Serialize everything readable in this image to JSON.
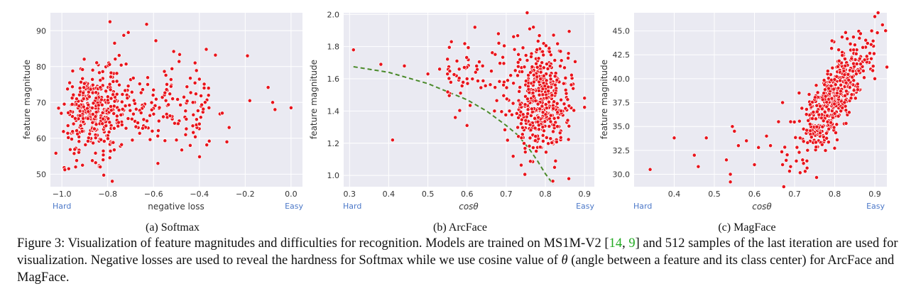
{
  "chart_data": [
    {
      "type": "scatter",
      "subcaption": "(a) Softmax",
      "xlabel": "negative loss",
      "ylabel": "feature magnitude",
      "xlim": [
        -1.05,
        0.05
      ],
      "ylim": [
        46.5,
        95
      ],
      "xticks": [
        "−1.0",
        "−0.8",
        "−0.6",
        "−0.4",
        "−0.2",
        "0.0"
      ],
      "xtick_values": [
        -1.0,
        -0.8,
        -0.6,
        -0.4,
        -0.2,
        0.0
      ],
      "yticks": [
        "50",
        "60",
        "70",
        "80",
        "90"
      ],
      "ytick_values": [
        50,
        60,
        70,
        80,
        90
      ],
      "left_note": "Hard",
      "right_note": "Easy",
      "point_color": "#e8141c",
      "n_points": 512,
      "cloud": {
        "x_center": -0.87,
        "x_spread": 0.06,
        "y_center": 67,
        "y_spread": 5.5,
        "share": 0.62
      },
      "tail": {
        "x_range": [
          -0.8,
          -0.35
        ],
        "y_center": 69,
        "y_spread": 7,
        "share": 0.33
      },
      "points": [
        [
          -0.79,
          92.5
        ],
        [
          -0.63,
          91.8
        ],
        [
          -0.71,
          89.5
        ],
        [
          -0.73,
          88.7
        ],
        [
          -0.77,
          86.5
        ],
        [
          -0.59,
          87.2
        ],
        [
          -0.37,
          84.8
        ],
        [
          -0.33,
          83.2
        ],
        [
          -0.19,
          83.0
        ],
        [
          -0.1,
          74.2
        ],
        [
          -0.08,
          70.0
        ],
        [
          -0.07,
          68.0
        ],
        [
          -0.0,
          68.5
        ],
        [
          -0.18,
          70.5
        ],
        [
          -0.27,
          63.0
        ],
        [
          -0.28,
          59.0
        ],
        [
          -0.4,
          64.0
        ],
        [
          -0.5,
          59.5
        ],
        [
          -0.46,
          61.0
        ],
        [
          -0.44,
          58.0
        ],
        [
          -0.78,
          48.0
        ],
        [
          -0.97,
          51.5
        ],
        [
          -0.94,
          52.0
        ],
        [
          -0.91,
          52.5
        ],
        [
          -0.82,
          54.0
        ],
        [
          -0.31,
          66.8
        ],
        [
          -0.3,
          67.0
        ],
        [
          -0.36,
          72.0
        ],
        [
          -0.4,
          76.5
        ],
        [
          -0.36,
          74.0
        ]
      ]
    },
    {
      "type": "scatter",
      "subcaption": "(b) ArcFace",
      "xlabel": "cosθ",
      "ylabel": "feature magnitude",
      "xlim": [
        0.285,
        0.925
      ],
      "ylim": [
        0.93,
        2.01
      ],
      "xticks": [
        "0.3",
        "0.4",
        "0.5",
        "0.6",
        "0.7",
        "0.8",
        "0.9"
      ],
      "xtick_values": [
        0.3,
        0.4,
        0.5,
        0.6,
        0.7,
        0.8,
        0.9
      ],
      "yticks": [
        "1.0",
        "1.2",
        "1.4",
        "1.6",
        "1.8",
        "2.0"
      ],
      "ytick_values": [
        1.0,
        1.2,
        1.4,
        1.6,
        1.8,
        2.0
      ],
      "left_note": "Hard",
      "right_note": "Easy",
      "point_color": "#e8141c",
      "curve_color": "#4a8a2a",
      "boundary_curve": [
        [
          0.31,
          1.675
        ],
        [
          0.4,
          1.64
        ],
        [
          0.5,
          1.57
        ],
        [
          0.6,
          1.47
        ],
        [
          0.65,
          1.4
        ],
        [
          0.7,
          1.31
        ],
        [
          0.73,
          1.25
        ],
        [
          0.76,
          1.16
        ],
        [
          0.78,
          1.09
        ],
        [
          0.8,
          1.01
        ],
        [
          0.82,
          0.945
        ]
      ],
      "n_points": 512,
      "cloud": {
        "x_center": 0.79,
        "x_spread": 0.035,
        "y_center": 1.48,
        "y_spread": 0.17,
        "share": 0.88
      },
      "tail": {
        "x_range": [
          0.55,
          0.74
        ],
        "y_center": 1.62,
        "y_spread": 0.12,
        "share": 0.07
      },
      "points": [
        [
          0.31,
          1.78
        ],
        [
          0.38,
          1.69
        ],
        [
          0.41,
          1.22
        ],
        [
          0.44,
          1.68
        ],
        [
          0.5,
          1.63
        ],
        [
          0.56,
          1.83
        ],
        [
          0.6,
          1.31
        ],
        [
          0.57,
          1.36
        ],
        [
          0.62,
          1.92
        ],
        [
          0.86,
          0.98
        ],
        [
          0.9,
          1.48
        ],
        [
          0.68,
          1.88
        ],
        [
          0.76,
          1.91
        ],
        [
          0.67,
          1.4
        ],
        [
          0.6,
          1.6
        ],
        [
          0.58,
          1.66
        ],
        [
          0.53,
          1.66
        ],
        [
          0.55,
          1.63
        ]
      ]
    },
    {
      "type": "scatter",
      "subcaption": "(c) MagFace",
      "xlabel": "cosθ",
      "ylabel": "feature magnitude",
      "xlim": [
        0.3,
        0.93
      ],
      "ylim": [
        28.7,
        46.9
      ],
      "xticks": [
        "0.4",
        "0.5",
        "0.6",
        "0.7",
        "0.8",
        "0.9"
      ],
      "xtick_values": [
        0.4,
        0.5,
        0.6,
        0.7,
        0.8,
        0.9
      ],
      "yticks": [
        "30.0",
        "32.5",
        "35.0",
        "37.5",
        "40.0",
        "42.5",
        "45.0"
      ],
      "ytick_values": [
        30.0,
        32.5,
        35.0,
        37.5,
        40.0,
        42.5,
        45.0
      ],
      "left_note": "Hard",
      "right_note": "Easy",
      "point_color": "#e8141c",
      "n_points": 512,
      "trend": {
        "x_center": 0.8,
        "x_spread": 0.045,
        "base_y": 38.0,
        "slope": 55,
        "y_spread": 2.0,
        "share": 0.9
      },
      "points": [
        [
          0.34,
          30.5
        ],
        [
          0.4,
          33.8
        ],
        [
          0.45,
          32.0
        ],
        [
          0.46,
          30.8
        ],
        [
          0.48,
          33.8
        ],
        [
          0.53,
          31.5
        ],
        [
          0.54,
          30.0
        ],
        [
          0.54,
          29.2
        ],
        [
          0.545,
          35.0
        ],
        [
          0.55,
          34.5
        ],
        [
          0.56,
          33.0
        ],
        [
          0.58,
          33.5
        ],
        [
          0.6,
          31.0
        ],
        [
          0.61,
          32.8
        ],
        [
          0.63,
          34.0
        ],
        [
          0.64,
          33.0
        ],
        [
          0.66,
          35.5
        ],
        [
          0.67,
          37.5
        ],
        [
          0.67,
          31.0
        ],
        [
          0.69,
          35.5
        ],
        [
          0.9,
          46.5
        ],
        [
          0.9,
          40.0
        ],
        [
          0.69,
          30.8
        ],
        [
          0.72,
          31.5
        ]
      ]
    }
  ],
  "caption": {
    "prefix": "Figure 3: Visualization of feature magnitudes and difficulties for recognition. Models are trained on MS1M-V2 [",
    "ref1": "14",
    "sep": ", ",
    "ref2": "9",
    "middle": "] and 512 samples of the last iteration are used for visualization. Negative losses are used to reveal the hardness for Softmax while we use cosine value of ",
    "theta": "θ",
    "suffix": " (angle between a feature and its class center) for ArcFace and MagFace."
  }
}
